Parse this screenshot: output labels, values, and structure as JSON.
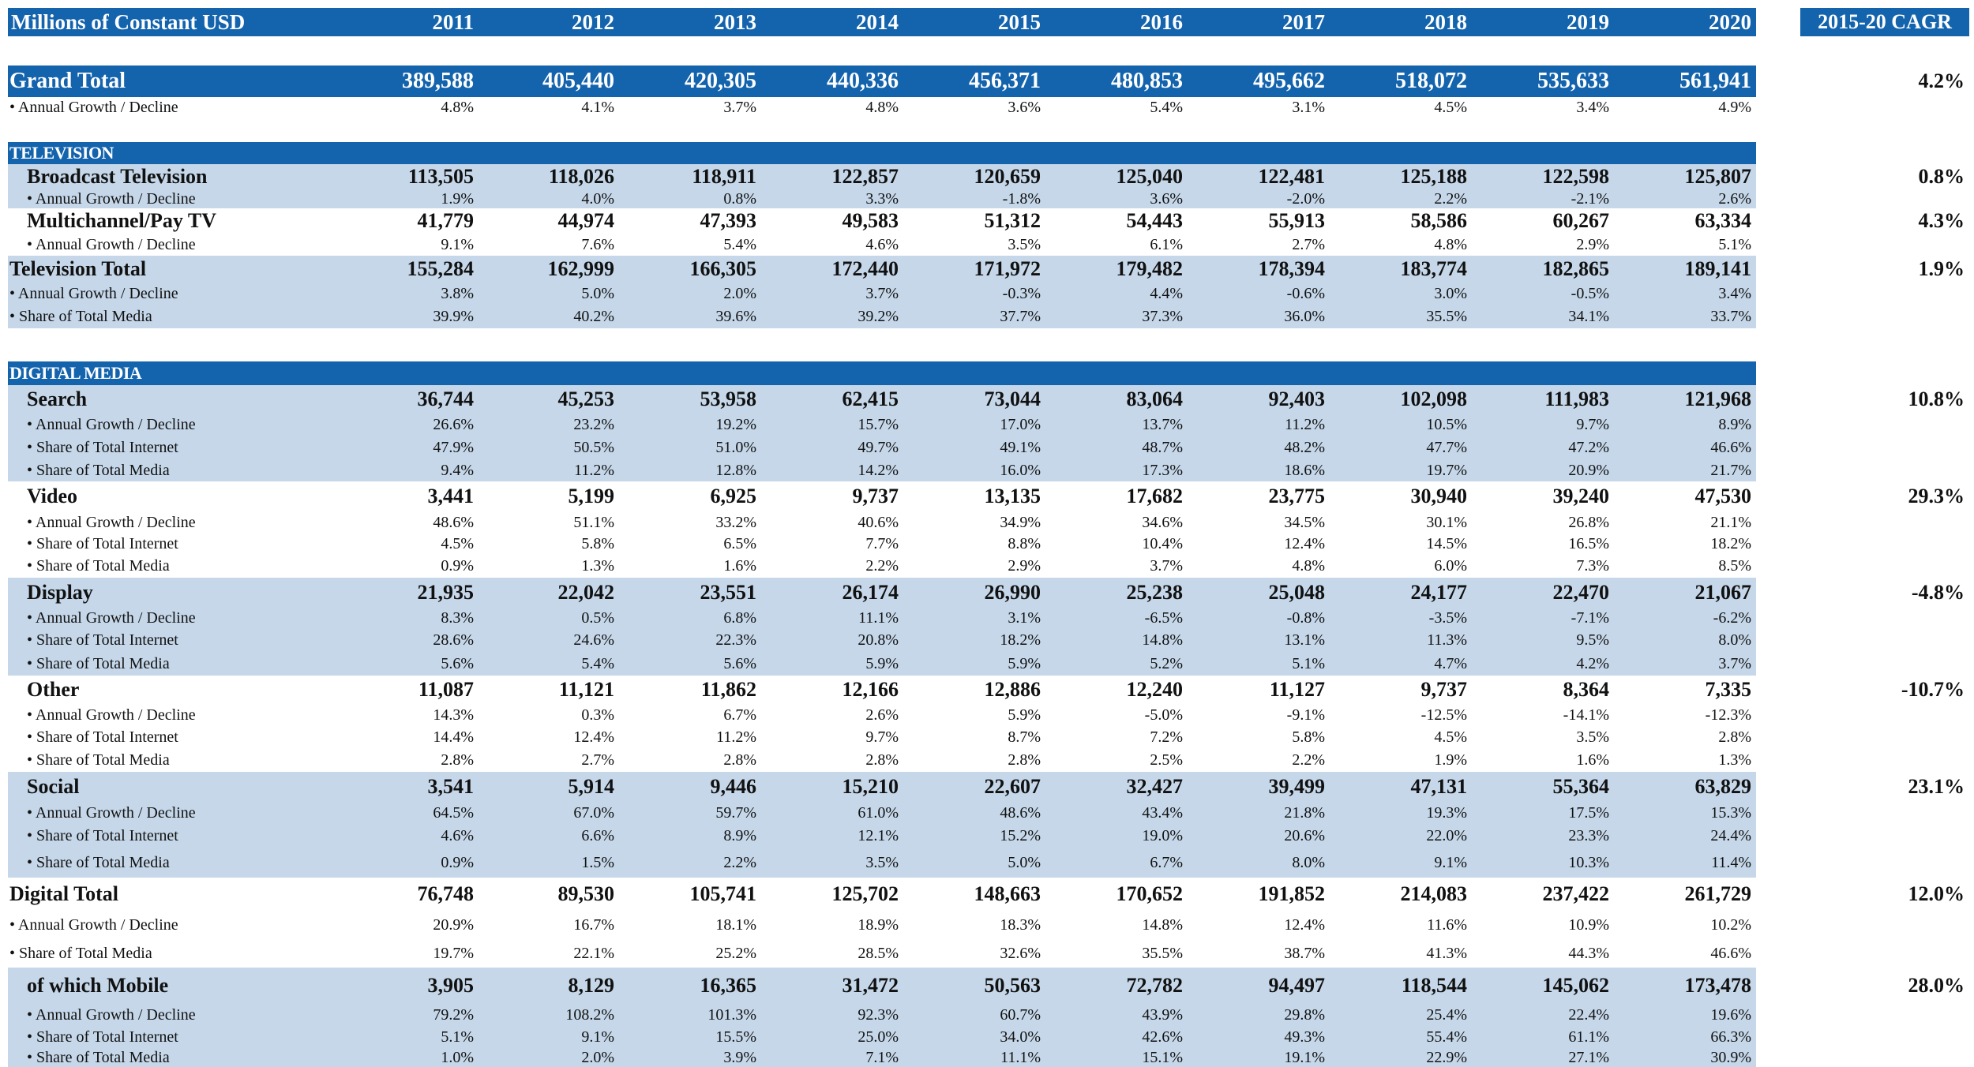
{
  "header": {
    "unit_label": "Millions of Constant USD",
    "years": [
      "2011",
      "2012",
      "2013",
      "2014",
      "2015",
      "2016",
      "2017",
      "2018",
      "2019",
      "2020"
    ],
    "cagr_label": "2015-20 CAGR"
  },
  "colors": {
    "header_blue": "#1464ad",
    "band_light_blue": "#c5d7e9",
    "text": "#111111"
  },
  "rows": [
    {
      "type": "gt",
      "top": 83,
      "h": 40,
      "label": "Grand Total",
      "values": [
        "389,588",
        "405,440",
        "420,305",
        "440,336",
        "456,371",
        "480,853",
        "495,662",
        "518,072",
        "535,633",
        "561,941"
      ],
      "cagr": "4.2%"
    },
    {
      "type": "gtsub",
      "top": 123,
      "h": 26,
      "label": "• Annual Growth / Decline",
      "values": [
        "4.8%",
        "4.1%",
        "3.7%",
        "4.8%",
        "3.6%",
        "5.4%",
        "3.1%",
        "4.5%",
        "3.4%",
        "4.9%"
      ]
    },
    {
      "type": "section",
      "top": 180,
      "h": 28,
      "label": "TELEVISION"
    },
    {
      "type": "main",
      "top": 208,
      "h": 32,
      "bg": "light",
      "ind": true,
      "label": "Broadcast Television",
      "values": [
        "113,505",
        "118,026",
        "118,911",
        "122,857",
        "120,659",
        "125,040",
        "122,481",
        "125,188",
        "122,598",
        "125,807"
      ],
      "cagr": "0.8%"
    },
    {
      "type": "sub",
      "top": 240,
      "h": 24,
      "bg": "light",
      "ind": true,
      "label": "• Annual Growth / Decline",
      "values": [
        "1.9%",
        "4.0%",
        "0.8%",
        "3.3%",
        "-1.8%",
        "3.6%",
        "-2.0%",
        "2.2%",
        "-2.1%",
        "2.6%"
      ]
    },
    {
      "type": "main",
      "top": 264,
      "h": 32,
      "ind": true,
      "label": "Multichannel/Pay TV",
      "values": [
        "41,779",
        "44,974",
        "47,393",
        "49,583",
        "51,312",
        "54,443",
        "55,913",
        "58,586",
        "60,267",
        "63,334"
      ],
      "cagr": "4.3%"
    },
    {
      "type": "sub",
      "top": 296,
      "h": 28,
      "ind": true,
      "label": "• Annual Growth / Decline",
      "values": [
        "9.1%",
        "7.6%",
        "5.4%",
        "4.6%",
        "3.5%",
        "6.1%",
        "2.7%",
        "4.8%",
        "2.9%",
        "5.1%"
      ]
    },
    {
      "type": "main",
      "top": 324,
      "h": 34,
      "bg": "light",
      "label": "Television Total",
      "values": [
        "155,284",
        "162,999",
        "166,305",
        "172,440",
        "171,972",
        "179,482",
        "178,394",
        "183,774",
        "182,865",
        "189,141"
      ],
      "cagr": "1.9%"
    },
    {
      "type": "sub",
      "top": 358,
      "h": 28,
      "bg": "light",
      "label": "• Annual Growth / Decline",
      "values": [
        "3.8%",
        "5.0%",
        "2.0%",
        "3.7%",
        "-0.3%",
        "4.4%",
        "-0.6%",
        "3.0%",
        "-0.5%",
        "3.4%"
      ]
    },
    {
      "type": "sub",
      "top": 386,
      "h": 30,
      "bg": "light",
      "label": "• Share of Total Media",
      "values": [
        "39.9%",
        "40.2%",
        "39.6%",
        "39.2%",
        "37.7%",
        "37.3%",
        "36.0%",
        "35.5%",
        "34.1%",
        "33.7%"
      ]
    },
    {
      "type": "section",
      "top": 458,
      "h": 30,
      "label": "DIGITAL MEDIA"
    },
    {
      "type": "main",
      "top": 488,
      "h": 36,
      "bg": "light",
      "ind": true,
      "label": "Search",
      "values": [
        "36,744",
        "45,253",
        "53,958",
        "62,415",
        "73,044",
        "83,064",
        "92,403",
        "102,098",
        "111,983",
        "121,968"
      ],
      "cagr": "10.8%"
    },
    {
      "type": "sub",
      "top": 524,
      "h": 28,
      "bg": "light",
      "ind": true,
      "label": "• Annual Growth / Decline",
      "values": [
        "26.6%",
        "23.2%",
        "19.2%",
        "15.7%",
        "17.0%",
        "13.7%",
        "11.2%",
        "10.5%",
        "9.7%",
        "8.9%"
      ]
    },
    {
      "type": "sub",
      "top": 552,
      "h": 30,
      "bg": "light",
      "ind": true,
      "label": "• Share of Total Internet",
      "values": [
        "47.9%",
        "50.5%",
        "51.0%",
        "49.7%",
        "49.1%",
        "48.7%",
        "48.2%",
        "47.7%",
        "47.2%",
        "46.6%"
      ]
    },
    {
      "type": "sub",
      "top": 582,
      "h": 28,
      "bg": "light",
      "ind": true,
      "label": "• Share of Total Media",
      "values": [
        "9.4%",
        "11.2%",
        "12.8%",
        "14.2%",
        "16.0%",
        "17.3%",
        "18.6%",
        "19.7%",
        "20.9%",
        "21.7%"
      ]
    },
    {
      "type": "main",
      "top": 610,
      "h": 38,
      "ind": true,
      "label": "Video",
      "values": [
        "3,441",
        "5,199",
        "6,925",
        "9,737",
        "13,135",
        "17,682",
        "23,775",
        "30,940",
        "39,240",
        "47,530"
      ],
      "cagr": "29.3%"
    },
    {
      "type": "sub",
      "top": 648,
      "h": 28,
      "ind": true,
      "label": "• Annual Growth / Decline",
      "values": [
        "48.6%",
        "51.1%",
        "33.2%",
        "40.6%",
        "34.9%",
        "34.6%",
        "34.5%",
        "30.1%",
        "26.8%",
        "21.1%"
      ]
    },
    {
      "type": "sub",
      "top": 676,
      "h": 26,
      "ind": true,
      "label": "• Share of Total Internet",
      "values": [
        "4.5%",
        "5.8%",
        "6.5%",
        "7.7%",
        "8.8%",
        "10.4%",
        "12.4%",
        "14.5%",
        "16.5%",
        "18.2%"
      ]
    },
    {
      "type": "sub",
      "top": 702,
      "h": 30,
      "ind": true,
      "label": "• Share of Total Media",
      "values": [
        "0.9%",
        "1.3%",
        "1.6%",
        "2.2%",
        "2.9%",
        "3.7%",
        "4.8%",
        "6.0%",
        "7.3%",
        "8.5%"
      ]
    },
    {
      "type": "main",
      "top": 732,
      "h": 38,
      "bg": "light",
      "ind": true,
      "label": "Display",
      "values": [
        "21,935",
        "22,042",
        "23,551",
        "26,174",
        "26,990",
        "25,238",
        "25,048",
        "24,177",
        "22,470",
        "21,067"
      ],
      "cagr": "-4.8%"
    },
    {
      "type": "sub",
      "top": 770,
      "h": 26,
      "bg": "light",
      "ind": true,
      "label": "• Annual Growth / Decline",
      "values": [
        "8.3%",
        "0.5%",
        "6.8%",
        "11.1%",
        "3.1%",
        "-6.5%",
        "-0.8%",
        "-3.5%",
        "-7.1%",
        "-6.2%"
      ]
    },
    {
      "type": "sub",
      "top": 796,
      "h": 30,
      "bg": "light",
      "ind": true,
      "label": "• Share of Total Internet",
      "values": [
        "28.6%",
        "24.6%",
        "22.3%",
        "20.8%",
        "18.2%",
        "14.8%",
        "13.1%",
        "11.3%",
        "9.5%",
        "8.0%"
      ]
    },
    {
      "type": "sub",
      "top": 826,
      "h": 30,
      "bg": "light",
      "ind": true,
      "label": "• Share of Total Media",
      "values": [
        "5.6%",
        "5.4%",
        "5.6%",
        "5.9%",
        "5.9%",
        "5.2%",
        "5.1%",
        "4.7%",
        "4.2%",
        "3.7%"
      ]
    },
    {
      "type": "main",
      "top": 856,
      "h": 36,
      "ind": true,
      "label": "Other",
      "values": [
        "11,087",
        "11,121",
        "11,862",
        "12,166",
        "12,886",
        "12,240",
        "11,127",
        "9,737",
        "8,364",
        "7,335"
      ],
      "cagr": "-10.7%"
    },
    {
      "type": "sub",
      "top": 892,
      "h": 28,
      "ind": true,
      "label": "• Annual Growth / Decline",
      "values": [
        "14.3%",
        "0.3%",
        "6.7%",
        "2.6%",
        "5.9%",
        "-5.0%",
        "-9.1%",
        "-12.5%",
        "-14.1%",
        "-12.3%"
      ]
    },
    {
      "type": "sub",
      "top": 920,
      "h": 28,
      "ind": true,
      "label": "• Share of Total Internet",
      "values": [
        "14.4%",
        "12.4%",
        "11.2%",
        "9.7%",
        "8.7%",
        "7.2%",
        "5.8%",
        "4.5%",
        "3.5%",
        "2.8%"
      ]
    },
    {
      "type": "sub",
      "top": 948,
      "h": 30,
      "ind": true,
      "label": "• Share of Total Media",
      "values": [
        "2.8%",
        "2.7%",
        "2.8%",
        "2.8%",
        "2.8%",
        "2.5%",
        "2.2%",
        "1.9%",
        "1.6%",
        "1.3%"
      ]
    },
    {
      "type": "main",
      "top": 978,
      "h": 38,
      "bg": "light",
      "ind": true,
      "label": "Social",
      "values": [
        "3,541",
        "5,914",
        "9,446",
        "15,210",
        "22,607",
        "32,427",
        "39,499",
        "47,131",
        "55,364",
        "63,829"
      ],
      "cagr": "23.1%"
    },
    {
      "type": "sub",
      "top": 1016,
      "h": 28,
      "bg": "light",
      "ind": true,
      "label": "• Annual Growth / Decline",
      "values": [
        "64.5%",
        "67.0%",
        "59.7%",
        "61.0%",
        "48.6%",
        "43.4%",
        "21.8%",
        "19.3%",
        "17.5%",
        "15.3%"
      ]
    },
    {
      "type": "sub",
      "top": 1044,
      "h": 30,
      "bg": "light",
      "ind": true,
      "label": "• Share of Total Internet",
      "values": [
        "4.6%",
        "6.6%",
        "8.9%",
        "12.1%",
        "15.2%",
        "19.0%",
        "20.6%",
        "22.0%",
        "23.3%",
        "24.4%"
      ]
    },
    {
      "type": "sub",
      "top": 1074,
      "h": 38,
      "bg": "light",
      "ind": true,
      "label": "• Share of Total Media",
      "values": [
        "0.9%",
        "1.5%",
        "2.2%",
        "3.5%",
        "5.0%",
        "6.7%",
        "8.0%",
        "9.1%",
        "10.3%",
        "11.4%"
      ]
    },
    {
      "type": "main",
      "top": 1112,
      "h": 42,
      "label": "Digital Total",
      "values": [
        "76,748",
        "89,530",
        "105,741",
        "125,702",
        "148,663",
        "170,652",
        "191,852",
        "214,083",
        "237,422",
        "261,729"
      ],
      "cagr": "12.0%"
    },
    {
      "type": "sub",
      "top": 1154,
      "h": 36,
      "label": "• Annual Growth / Decline",
      "values": [
        "20.9%",
        "16.7%",
        "18.1%",
        "18.9%",
        "18.3%",
        "14.8%",
        "12.4%",
        "11.6%",
        "10.9%",
        "10.2%"
      ]
    },
    {
      "type": "sub",
      "top": 1190,
      "h": 36,
      "label": "• Share of Total Media",
      "values": [
        "19.7%",
        "22.1%",
        "25.2%",
        "28.5%",
        "32.6%",
        "35.5%",
        "38.7%",
        "41.3%",
        "44.3%",
        "46.6%"
      ]
    },
    {
      "type": "main",
      "top": 1226,
      "h": 46,
      "bg": "light",
      "ind": true,
      "label": "of which Mobile",
      "values": [
        "3,905",
        "8,129",
        "16,365",
        "31,472",
        "50,563",
        "72,782",
        "94,497",
        "118,544",
        "145,062",
        "173,478"
      ],
      "cagr": "28.0%"
    },
    {
      "type": "sub",
      "top": 1272,
      "h": 28,
      "bg": "light",
      "ind": true,
      "label": "• Annual Growth / Decline",
      "values": [
        "79.2%",
        "108.2%",
        "101.3%",
        "92.3%",
        "60.7%",
        "43.9%",
        "29.8%",
        "25.4%",
        "22.4%",
        "19.6%"
      ]
    },
    {
      "type": "sub",
      "top": 1300,
      "h": 28,
      "bg": "light",
      "ind": true,
      "label": "• Share of Total Internet",
      "values": [
        "5.1%",
        "9.1%",
        "15.5%",
        "25.0%",
        "34.0%",
        "42.6%",
        "49.3%",
        "55.4%",
        "61.1%",
        "66.3%"
      ]
    },
    {
      "type": "sub",
      "top": 1328,
      "h": 24,
      "bg": "light",
      "ind": true,
      "label": "• Share of Total Media",
      "values": [
        "1.0%",
        "2.0%",
        "3.9%",
        "7.1%",
        "11.1%",
        "15.1%",
        "19.1%",
        "22.9%",
        "27.1%",
        "30.9%"
      ]
    }
  ]
}
